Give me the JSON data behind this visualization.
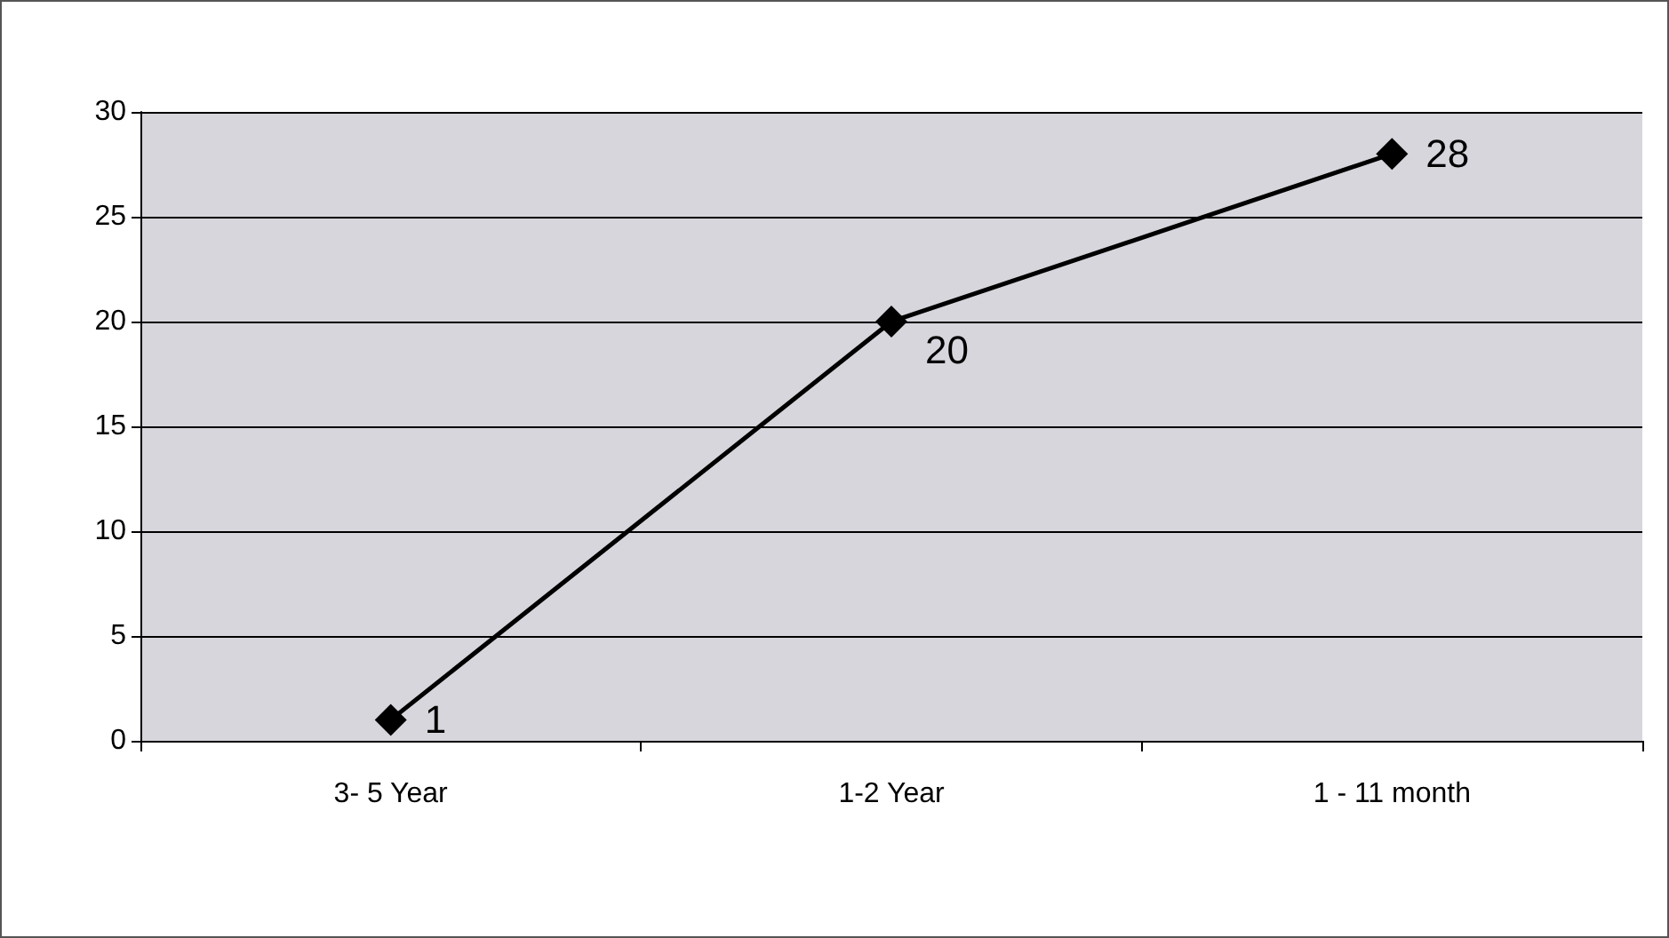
{
  "chart_data": {
    "type": "line",
    "categories": [
      "3- 5 Year",
      "1-2 Year",
      "1 - 11 month"
    ],
    "series": [
      {
        "color": "#000000",
        "values": [
          1,
          20,
          28
        ]
      }
    ],
    "ylim": [
      0,
      30
    ],
    "yticks": [
      0,
      5,
      10,
      15,
      20,
      25,
      30
    ],
    "grid": "y",
    "marker": "diamond",
    "line_style": "solid",
    "data_labels": true
  }
}
